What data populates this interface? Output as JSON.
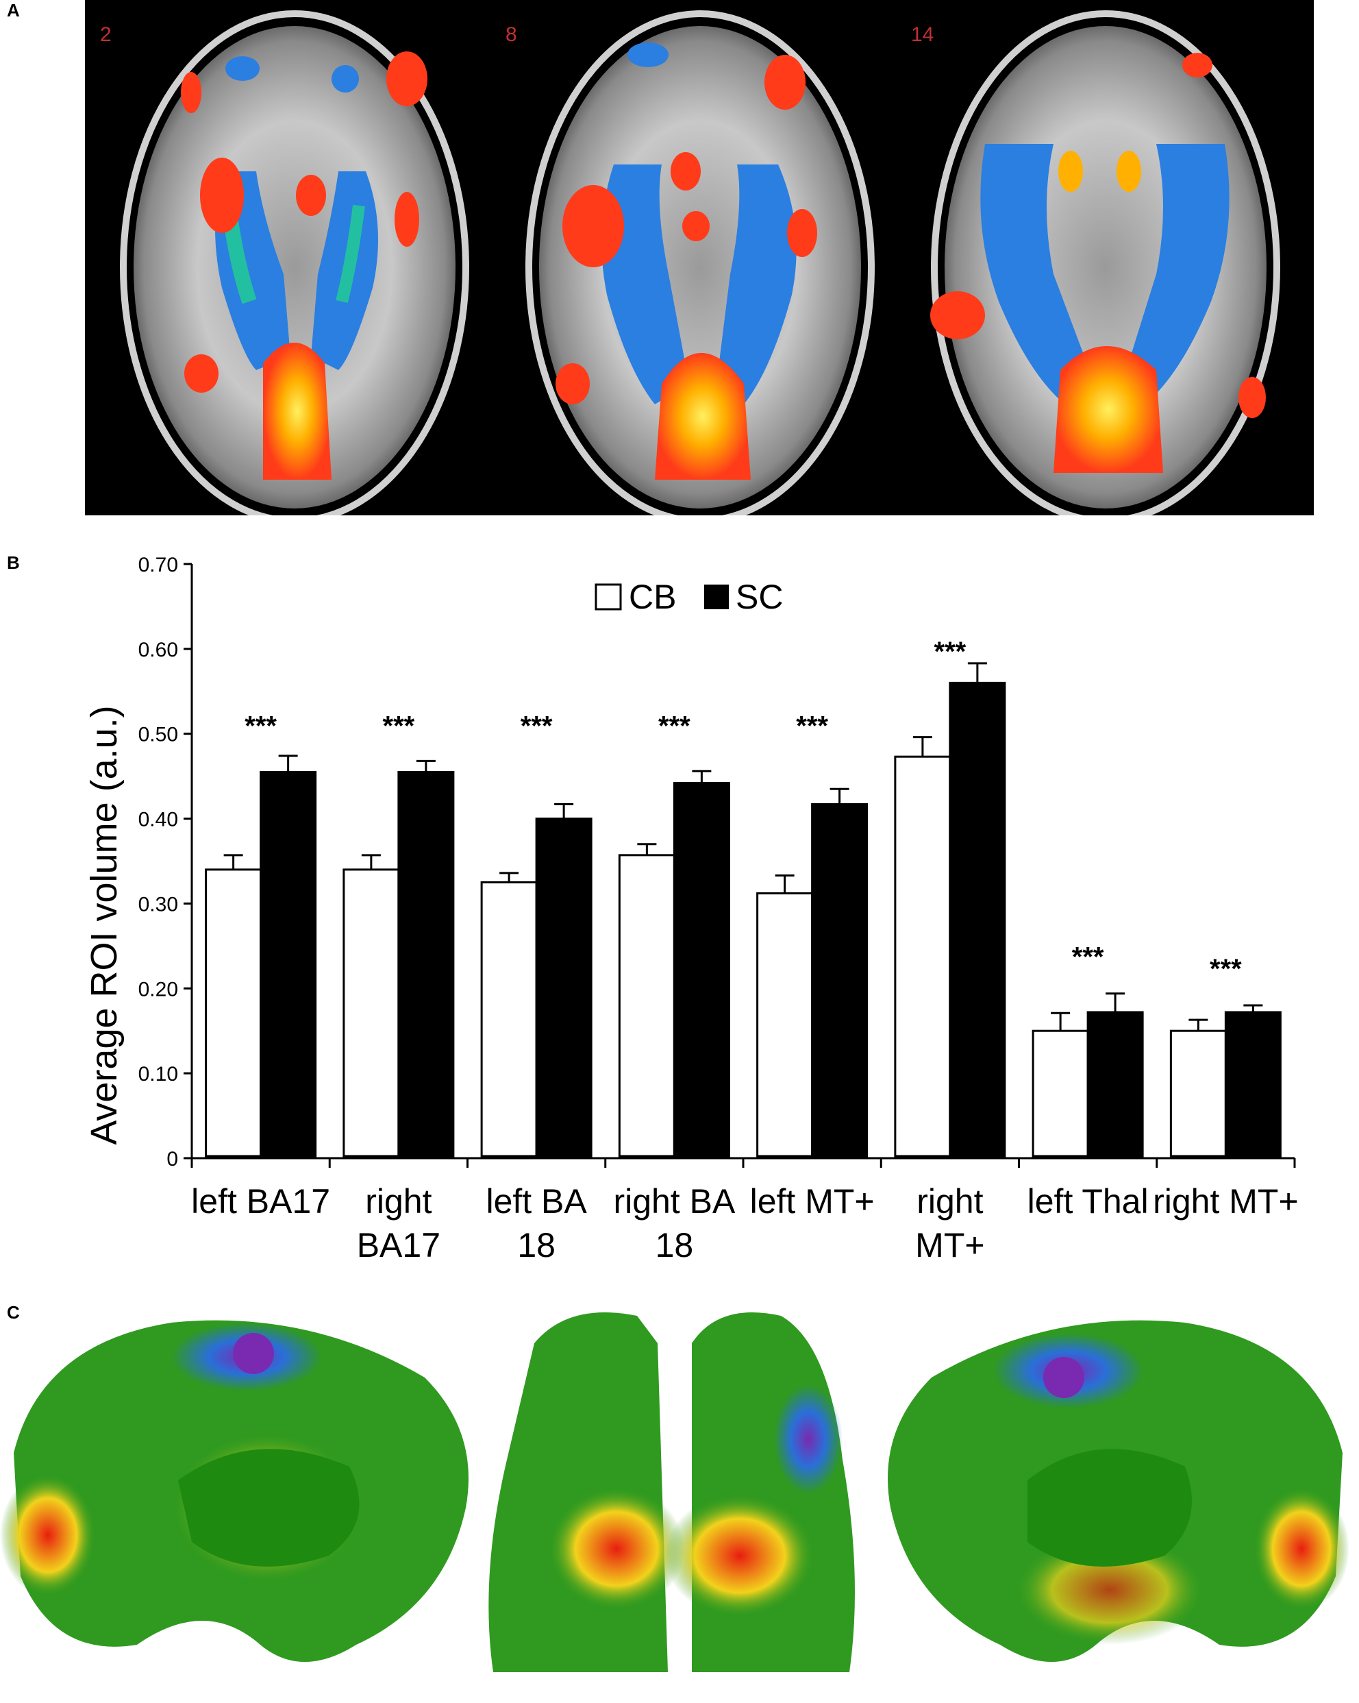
{
  "panel_labels": {
    "a": "A",
    "b": "B",
    "c": "C"
  },
  "panel_a": {
    "slice_labels": [
      "2",
      "8",
      "14"
    ],
    "colors": {
      "activation": "#ff3b1a",
      "activation_peak": "#ffe000",
      "deactivation": "#2a7fe0",
      "deactivation_peak": "#22c0a0"
    }
  },
  "panel_c": {
    "views": [
      "left-medial-surface",
      "posterior-view",
      "right-medial-surface"
    ],
    "colors": {
      "base": "#2f9a1f",
      "high": "#e81e10",
      "mid": "#f2d21c",
      "low": "#2a6fd8",
      "lowest": "#7a2ab0"
    }
  },
  "chart_data": {
    "type": "bar",
    "ylabel": "Average ROI volume (a.u.)",
    "ylim": [
      0,
      0.7
    ],
    "yticks": [
      "0",
      "0.10",
      "0.20",
      "0.30",
      "0.40",
      "0.50",
      "0.60",
      "0.70"
    ],
    "ytick_values": [
      0,
      0.1,
      0.2,
      0.3,
      0.4,
      0.5,
      0.6,
      0.7
    ],
    "categories": [
      [
        "left BA17"
      ],
      [
        "right",
        "BA17"
      ],
      [
        "left BA",
        "18"
      ],
      [
        "right BA",
        "18"
      ],
      [
        "left MT+"
      ],
      [
        "right",
        "MT+"
      ],
      [
        "left Thal"
      ],
      [
        "right MT+"
      ]
    ],
    "series": [
      {
        "name": "CB",
        "color": "#ffffff",
        "values": [
          0.34,
          0.34,
          0.325,
          0.357,
          0.312,
          0.473,
          0.15,
          0.15
        ],
        "errors": [
          0.017,
          0.017,
          0.011,
          0.013,
          0.021,
          0.023,
          0.021,
          0.013
        ]
      },
      {
        "name": "SC",
        "color": "#000000",
        "values": [
          0.455,
          0.455,
          0.4,
          0.442,
          0.417,
          0.56,
          0.172,
          0.172
        ],
        "errors": [
          0.019,
          0.013,
          0.017,
          0.014,
          0.018,
          0.023,
          0.022,
          0.008
        ]
      }
    ],
    "significance": [
      "***",
      "***",
      "***",
      "***",
      "***",
      "***",
      "***",
      "***"
    ],
    "legend": {
      "placement": "top-center",
      "labels": [
        "CB",
        "SC"
      ]
    }
  }
}
